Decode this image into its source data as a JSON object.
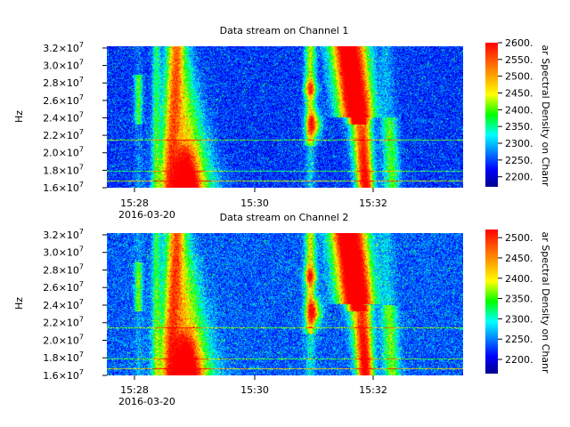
{
  "chart_data": [
    {
      "type": "heatmap",
      "title": "Data stream on Channel 1",
      "ylabel": "Hz",
      "colorbar_label": "ar Spectral Density on Chanr",
      "colorbar_ticks": [
        "2600.",
        "2550.",
        "2500.",
        "2450.",
        "2400.",
        "2350.",
        "2300.",
        "2250.",
        "2200."
      ],
      "colorbar_range": [
        2170,
        2600
      ],
      "x_ticks": [
        "15:28",
        "15:30",
        "15:32"
      ],
      "x_date": "2016-03-20",
      "y_ticks": [
        {
          "mantissa": "3.2",
          "exp": "7"
        },
        {
          "mantissa": "3.0",
          "exp": "7"
        },
        {
          "mantissa": "2.8",
          "exp": "7"
        },
        {
          "mantissa": "2.6",
          "exp": "7"
        },
        {
          "mantissa": "2.4",
          "exp": "7"
        },
        {
          "mantissa": "2.2",
          "exp": "7"
        },
        {
          "mantissa": "2.0",
          "exp": "7"
        },
        {
          "mantissa": "1.8",
          "exp": "7"
        },
        {
          "mantissa": "1.6",
          "exp": "7"
        }
      ],
      "ylim": [
        16000000,
        32200000
      ]
    },
    {
      "type": "heatmap",
      "title": "Data stream on Channel 2",
      "ylabel": "Hz",
      "colorbar_label": "ar Spectral Density on Chanr",
      "colorbar_ticks": [
        "2500.",
        "2450.",
        "2400.",
        "2350.",
        "2300.",
        "2250.",
        "2200."
      ],
      "colorbar_range": [
        2165,
        2520
      ],
      "x_ticks": [
        "15:28",
        "15:30",
        "15:32"
      ],
      "x_date": "2016-03-20",
      "y_ticks": [
        {
          "mantissa": "3.2",
          "exp": "7"
        },
        {
          "mantissa": "3.0",
          "exp": "7"
        },
        {
          "mantissa": "2.8",
          "exp": "7"
        },
        {
          "mantissa": "2.6",
          "exp": "7"
        },
        {
          "mantissa": "2.4",
          "exp": "7"
        },
        {
          "mantissa": "2.2",
          "exp": "7"
        },
        {
          "mantissa": "2.0",
          "exp": "7"
        },
        {
          "mantissa": "1.8",
          "exp": "7"
        },
        {
          "mantissa": "1.6",
          "exp": "7"
        }
      ],
      "ylim": [
        16000000,
        32200000
      ]
    }
  ],
  "colors": {
    "background": "#ffffff",
    "colormap": [
      "#00008f",
      "#0000ff",
      "#00ffff",
      "#00ff00",
      "#ffff00",
      "#ff8000",
      "#ff0000"
    ]
  }
}
